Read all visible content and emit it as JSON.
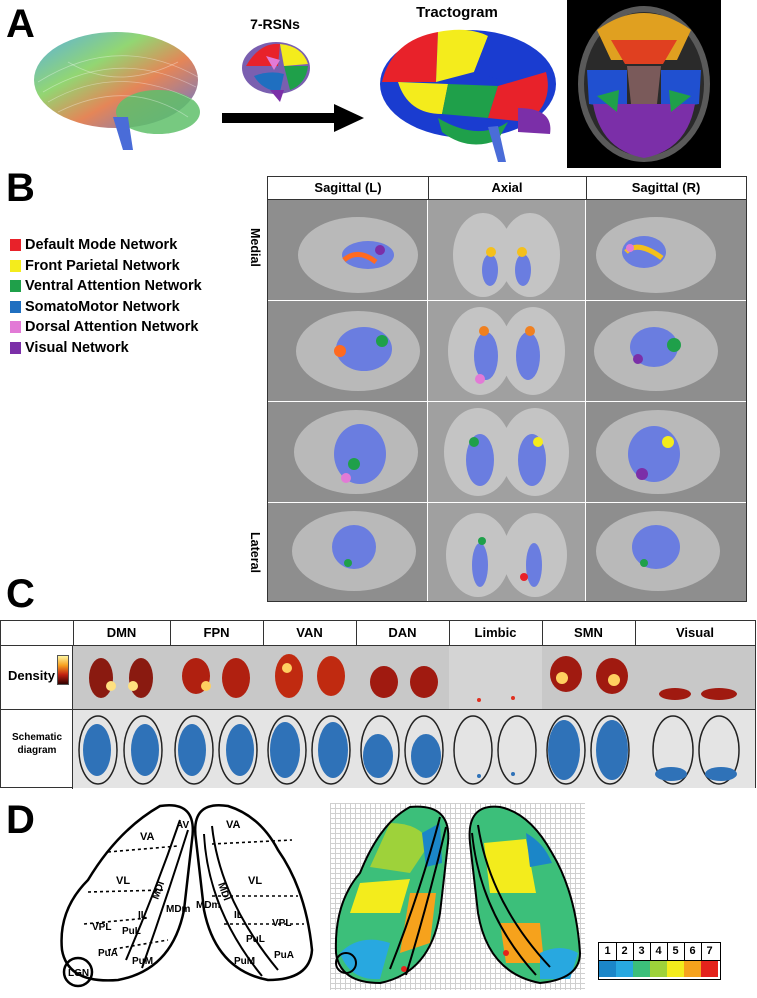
{
  "panel_a": {
    "letter": "A",
    "rsn_label": "7-RSNs",
    "tractogram_label": "Tractogram"
  },
  "panel_b": {
    "letter": "B",
    "columns": [
      "Sagittal (L)",
      "Axial",
      "Sagittal (R)"
    ],
    "medial_label": "Medial",
    "lateral_label": "Lateral",
    "legend": [
      {
        "label": "Default Mode Network",
        "color": "#e8222a"
      },
      {
        "label": "Front Parietal Network",
        "color": "#f4ec1c"
      },
      {
        "label": "Ventral Attention Network",
        "color": "#1fa04a"
      },
      {
        "label": "SomatoMotor Network",
        "color": "#1f6fc0"
      },
      {
        "label": "Dorsal Attention Network",
        "color": "#e27ad6"
      },
      {
        "label": "Visual Network",
        "color": "#7b2fa8"
      }
    ]
  },
  "panel_c": {
    "letter": "C",
    "columns": [
      "DMN",
      "FPN",
      "VAN",
      "DAN",
      "Limbic",
      "SMN",
      "Visual"
    ],
    "density_label": "Density",
    "schematic_label_1": "Schematic",
    "schematic_label_2": "diagram"
  },
  "panel_d": {
    "letter": "D",
    "left_labels": {
      "va": "VA",
      "av": "AV",
      "vl": "VL",
      "mdl": "MDl",
      "mdm": "MDm",
      "il": "IL",
      "vpl": "VPL",
      "pul": "PuL",
      "pua": "PuA",
      "pum": "PuM",
      "lgn": "LGN"
    },
    "right_labels": {
      "va": "VA",
      "vl": "VL",
      "mdl": "MDl",
      "mdm": "MDm",
      "il": "IL",
      "vpl": "VPL",
      "pul": "PuL",
      "pua": "PuA",
      "pum": "PuM"
    },
    "scale": [
      {
        "n": "1",
        "color": "#1b86c8"
      },
      {
        "n": "2",
        "color": "#28a8e0"
      },
      {
        "n": "3",
        "color": "#3cbf7a"
      },
      {
        "n": "4",
        "color": "#9ed23a"
      },
      {
        "n": "5",
        "color": "#f3ec1c"
      },
      {
        "n": "6",
        "color": "#f6a21c"
      },
      {
        "n": "7",
        "color": "#e4231c"
      }
    ]
  }
}
